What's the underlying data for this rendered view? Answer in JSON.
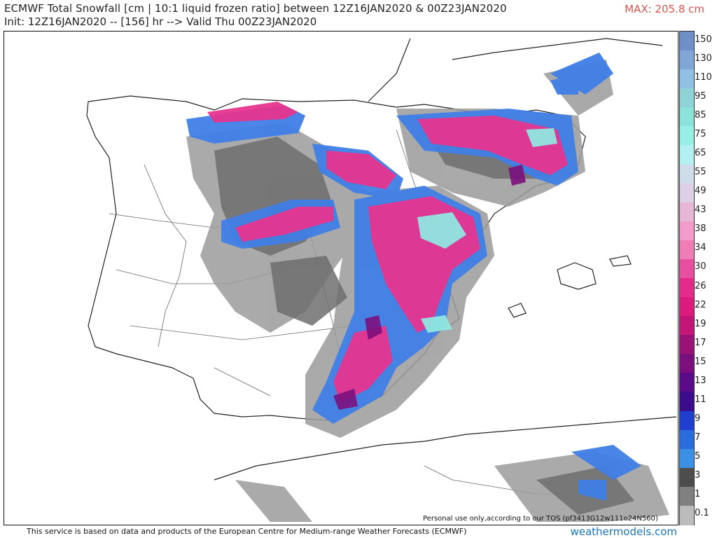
{
  "header": {
    "title": "ECMWF Total Snowfall [cm | 10:1 liquid frozen ratio] between 12Z16JAN2020 & 00Z23JAN2020",
    "subtitle": "Init: 12Z16JAN2020 -- [156] hr --> Valid Thu 00Z23JAN2020",
    "max_label": "MAX: 205.8 cm"
  },
  "legend": {
    "ticks": [
      "150",
      "130",
      "110",
      "95",
      "85",
      "75",
      "65",
      "55",
      "49",
      "43",
      "38",
      "34",
      "30",
      "26",
      "22",
      "19",
      "17",
      "15",
      "13",
      "11",
      "9",
      "7",
      "5",
      "3",
      "1",
      "0.1"
    ],
    "colors": [
      "#6f8fc9",
      "#7fa6d6",
      "#90c0e4",
      "#8fd3d7",
      "#8ce3d9",
      "#98efe6",
      "#b3f1f1",
      "#cfdce9",
      "#ddd0e6",
      "#e8b7d8",
      "#f39ccb",
      "#f07cb8",
      "#e94fa0",
      "#e62a8b",
      "#dd1a7e",
      "#c41578",
      "#9a1275",
      "#7b0f7d",
      "#5b0b8a",
      "#3b0c8c",
      "#1e3fcf",
      "#2a6cdc",
      "#3b91e6",
      "#4d4d4d",
      "#808080",
      "#bcbcbc"
    ]
  },
  "overlay": {
    "personal_use": "Personal use only,according to our TOS (pf3413G12w111o24N560)"
  },
  "footer": {
    "attribution": "This service is based on data and products of the European Centre for Medium-range Weather Forecasts (ECMWF)",
    "brand": "weathermodels.com"
  },
  "colors": {
    "land": "#ffffff",
    "border": "#222222",
    "snow_light": "#9b9b9b",
    "snow_mid": "#6e6e6e",
    "snow_blue": "#3f7fe6",
    "snow_pink": "#e6358f",
    "snow_cyan": "#8fe6df"
  }
}
